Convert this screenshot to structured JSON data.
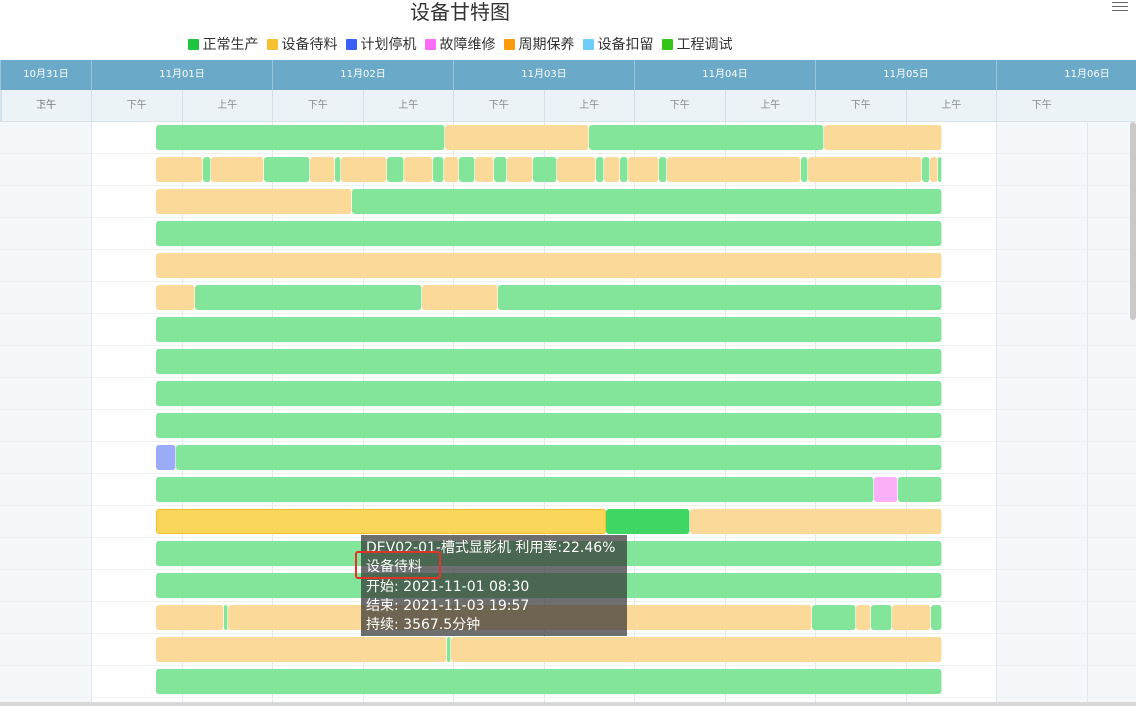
{
  "title": "设备甘特图",
  "menu_icon": "hamburger-menu-icon",
  "legend": [
    {
      "label": "正常生产",
      "color": "#1fc43f"
    },
    {
      "label": "设备待料",
      "color": "#f6c033"
    },
    {
      "label": "计划停机",
      "color": "#3a5ff5"
    },
    {
      "label": "故障维修",
      "color": "#fc6cfa"
    },
    {
      "label": "周期保养",
      "color": "#fb9b0c"
    },
    {
      "label": "设备扣留",
      "color": "#6fcdf7"
    },
    {
      "label": "工程调试",
      "color": "#32c516"
    }
  ],
  "bar_colors": {
    "正常生产": "#82e59a",
    "设备待料": "#fbd999",
    "计划停机": "#9aacf7",
    "故障维修": "#fcb0f8",
    "selected_wait": "#f9d65a",
    "selected_run": "#3fd663"
  },
  "days": [
    "10月31日",
    "11月01日",
    "11月02日",
    "11月03日",
    "11月04日",
    "11月05日",
    "11月06日"
  ],
  "half_labels": [
    "下午",
    "上午",
    "下午",
    "上午",
    "下午",
    "上午",
    "下午",
    "上午",
    "下午",
    "上午",
    "下午",
    "上午",
    "下午"
  ],
  "axis": {
    "start": "2021-10-31 12:00",
    "end": "2021-11-06 18:00"
  },
  "tooltip": {
    "line1": "DEV02-01-槽式显影机 利用率:22.46%",
    "line2": "设备待料",
    "line3": "开始: 2021-11-01 08:30",
    "line4": "结束: 2021-11-03 19:57",
    "line5": "持续: 3567.5分钟"
  },
  "rows": [
    [
      [
        "正常生产",
        0,
        36.8
      ],
      [
        "设备待料",
        36.8,
        55.1
      ],
      [
        "正常生产",
        55.1,
        85.0
      ],
      [
        "设备待料",
        85.0,
        100
      ]
    ],
    [
      [
        "设备待料",
        0,
        6
      ],
      [
        "正常生产",
        6,
        7
      ],
      [
        "设备待料",
        7,
        13.8
      ],
      [
        "正常生产",
        13.8,
        19.6
      ],
      [
        "设备待料",
        19.6,
        22.8
      ],
      [
        "正常生产",
        22.8,
        23.6
      ],
      [
        "设备待料",
        23.6,
        29.4
      ],
      [
        "正常生产",
        29.4,
        31.6
      ],
      [
        "设备待料",
        31.6,
        35.2
      ],
      [
        "正常生产",
        35.2,
        36.6
      ],
      [
        "设备待料",
        36.6,
        38.6
      ],
      [
        "正常生产",
        38.6,
        40.6
      ],
      [
        "设备待料",
        40.6,
        43
      ],
      [
        "正常生产",
        43,
        44.6
      ],
      [
        "设备待料",
        44.6,
        48
      ],
      [
        "正常生产",
        48,
        51
      ],
      [
        "设备待料",
        51,
        56
      ],
      [
        "正常生产",
        56,
        57
      ],
      [
        "设备待料",
        57,
        59
      ],
      [
        "正常生产",
        59,
        60
      ],
      [
        "设备待料",
        60,
        64
      ],
      [
        "正常生产",
        64,
        65
      ],
      [
        "设备待料",
        65,
        82
      ],
      [
        "正常生产",
        82,
        83
      ],
      [
        "设备待料",
        83,
        97.5
      ],
      [
        "正常生产",
        97.5,
        98.5
      ],
      [
        "设备待料",
        98.5,
        99.5
      ],
      [
        "正常生产",
        99.5,
        100
      ]
    ],
    [
      [
        "设备待料",
        0,
        24.9
      ],
      [
        "正常生产",
        24.9,
        100
      ]
    ],
    [
      [
        "正常生产",
        0,
        100
      ]
    ],
    [
      [
        "设备待料",
        0,
        100
      ]
    ],
    [
      [
        "设备待料",
        0,
        4.9
      ],
      [
        "正常生产",
        4.9,
        33.8
      ],
      [
        "设备待料",
        33.8,
        43.5
      ],
      [
        "正常生产",
        43.5,
        100
      ]
    ],
    [
      [
        "正常生产",
        0,
        100
      ]
    ],
    [
      [
        "正常生产",
        0,
        100
      ]
    ],
    [
      [
        "正常生产",
        0,
        100
      ]
    ],
    [
      [
        "正常生产",
        0,
        100
      ]
    ],
    [
      [
        "计划停机",
        0,
        2.5
      ],
      [
        "正常生产",
        2.5,
        100
      ]
    ],
    [
      [
        "正常生产",
        0,
        91.4
      ],
      [
        "故障维修",
        91.4,
        94.4
      ],
      [
        "正常生产",
        94.4,
        100
      ]
    ],
    [
      [
        "selected_wait",
        0,
        57.3
      ],
      [
        "selected_run",
        57.3,
        68
      ],
      [
        "设备待料",
        68,
        100
      ]
    ],
    [
      [
        "正常生产",
        0,
        100
      ]
    ],
    [
      [
        "正常生产",
        0,
        100
      ]
    ],
    [
      [
        "设备待料",
        0,
        8.6
      ],
      [
        "正常生产",
        8.6,
        9.2
      ],
      [
        "设备待料",
        9.2,
        83.5
      ],
      [
        "正常生产",
        83.5,
        89
      ],
      [
        "设备待料",
        89,
        91
      ],
      [
        "正常生产",
        91,
        93.6
      ],
      [
        "设备待料",
        93.6,
        98.6
      ],
      [
        "正常生产",
        98.6,
        100
      ]
    ],
    [
      [
        "设备待料",
        0,
        37
      ],
      [
        "正常生产",
        37,
        37.5
      ],
      [
        "设备待料",
        37.5,
        100
      ]
    ],
    [
      [
        "正常生产",
        0,
        100
      ]
    ]
  ]
}
